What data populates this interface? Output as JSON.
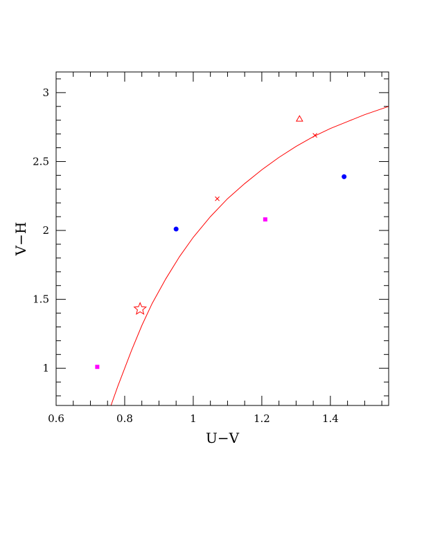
{
  "chart_data": {
    "type": "scatter",
    "xlabel": "U−V",
    "ylabel": "V−H",
    "xlim": [
      0.6,
      1.57
    ],
    "ylim": [
      0.73,
      3.15
    ],
    "x_ticks": [
      0.6,
      0.8,
      1.0,
      1.2,
      1.4
    ],
    "x_tick_labels": [
      "0.6",
      "0.8",
      "1",
      "1.2",
      "1.4"
    ],
    "y_ticks": [
      1.0,
      1.5,
      2.0,
      2.5,
      3.0
    ],
    "y_tick_labels": [
      "1",
      "1.5",
      "2",
      "2.5",
      "3"
    ],
    "x_minor_step": 0.05,
    "y_minor_step": 0.1,
    "grid": false,
    "curve": {
      "color": "#ff0000",
      "x": [
        0.76,
        0.78,
        0.8,
        0.82,
        0.85,
        0.88,
        0.92,
        0.96,
        1.0,
        1.05,
        1.1,
        1.15,
        1.2,
        1.25,
        1.3,
        1.35,
        1.4,
        1.45,
        1.5,
        1.57
      ],
      "y": [
        0.73,
        0.87,
        1.0,
        1.13,
        1.31,
        1.47,
        1.65,
        1.81,
        1.95,
        2.1,
        2.23,
        2.34,
        2.44,
        2.53,
        2.61,
        2.68,
        2.74,
        2.79,
        2.84,
        2.9
      ]
    },
    "points": [
      {
        "x": 0.72,
        "y": 1.01,
        "marker": "square",
        "color": "#ff00ff"
      },
      {
        "x": 1.21,
        "y": 2.08,
        "marker": "square",
        "color": "#ff00ff"
      },
      {
        "x": 0.95,
        "y": 2.01,
        "marker": "circle",
        "color": "#0000ff"
      },
      {
        "x": 1.44,
        "y": 2.39,
        "marker": "circle",
        "color": "#0000ff"
      },
      {
        "x": 0.845,
        "y": 1.43,
        "marker": "star",
        "color": "#ff0000"
      },
      {
        "x": 1.31,
        "y": 2.81,
        "marker": "triangle",
        "color": "#ff0000"
      },
      {
        "x": 1.07,
        "y": 2.23,
        "marker": "cross",
        "color": "#ff0000"
      },
      {
        "x": 1.355,
        "y": 2.69,
        "marker": "cross",
        "color": "#ff0000"
      }
    ]
  }
}
